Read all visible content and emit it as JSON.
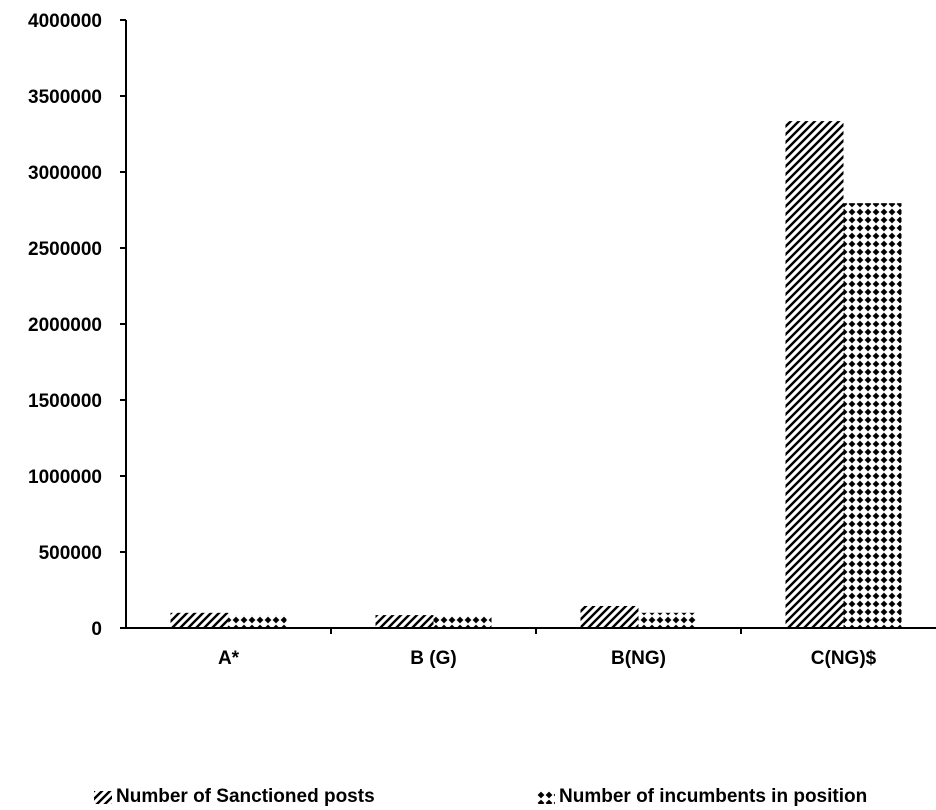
{
  "chart_data": {
    "type": "bar",
    "categories": [
      "A*",
      "B (G)",
      "B(NG)",
      "C(NG)$"
    ],
    "series": [
      {
        "name": "Number of Sanctioned posts",
        "values": [
          100000,
          85000,
          145000,
          3335000
        ],
        "pattern": "diagonal-hatch"
      },
      {
        "name": "Number of incumbents in position",
        "values": [
          85000,
          80000,
          100000,
          2795000
        ],
        "pattern": "diamond-dots"
      }
    ],
    "ylim": [
      0,
      4000000
    ],
    "yticks": [
      0,
      500000,
      1000000,
      1500000,
      2000000,
      2500000,
      3000000,
      3500000,
      4000000
    ],
    "title": "",
    "xlabel": "",
    "ylabel": "",
    "grid": false,
    "legend_position": "bottom"
  }
}
